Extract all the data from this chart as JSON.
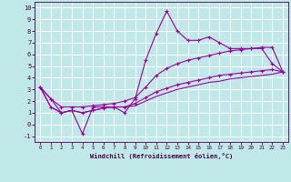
{
  "xlabel": "Windchill (Refroidissement éolien,°C)",
  "bg_color": "#c0e8e8",
  "grid_color": "#ffffff",
  "line_color": "#990099",
  "xlim": [
    -0.5,
    23.5
  ],
  "ylim": [
    -1.5,
    10.5
  ],
  "xticks": [
    0,
    1,
    2,
    3,
    4,
    5,
    6,
    7,
    8,
    9,
    10,
    11,
    12,
    13,
    14,
    15,
    16,
    17,
    18,
    19,
    20,
    21,
    22,
    23
  ],
  "yticks": [
    -1,
    0,
    1,
    2,
    3,
    4,
    5,
    6,
    7,
    8,
    9,
    10
  ],
  "s0": [
    3.2,
    2.2,
    1.0,
    1.2,
    -0.8,
    1.5,
    1.5,
    1.5,
    1.0,
    2.2,
    5.5,
    7.8,
    9.7,
    8.0,
    7.2,
    7.2,
    7.5,
    7.0,
    6.5,
    6.5,
    6.5,
    6.5,
    5.2,
    4.5
  ],
  "s1": [
    3.2,
    2.2,
    1.5,
    1.5,
    1.5,
    1.6,
    1.7,
    1.8,
    2.0,
    2.3,
    3.2,
    4.2,
    4.8,
    5.2,
    5.5,
    5.7,
    5.9,
    6.1,
    6.3,
    6.4,
    6.5,
    6.6,
    6.6,
    4.5
  ],
  "s2": [
    3.2,
    1.5,
    1.0,
    1.2,
    1.0,
    1.2,
    1.4,
    1.5,
    1.5,
    1.8,
    2.3,
    2.8,
    3.1,
    3.4,
    3.6,
    3.8,
    4.0,
    4.2,
    4.3,
    4.4,
    4.5,
    4.6,
    4.7,
    4.5
  ],
  "s3": [
    3.2,
    1.5,
    1.0,
    1.2,
    1.0,
    1.2,
    1.4,
    1.5,
    1.5,
    1.6,
    2.0,
    2.4,
    2.7,
    3.0,
    3.2,
    3.4,
    3.6,
    3.7,
    3.9,
    4.0,
    4.1,
    4.2,
    4.3,
    4.5
  ]
}
